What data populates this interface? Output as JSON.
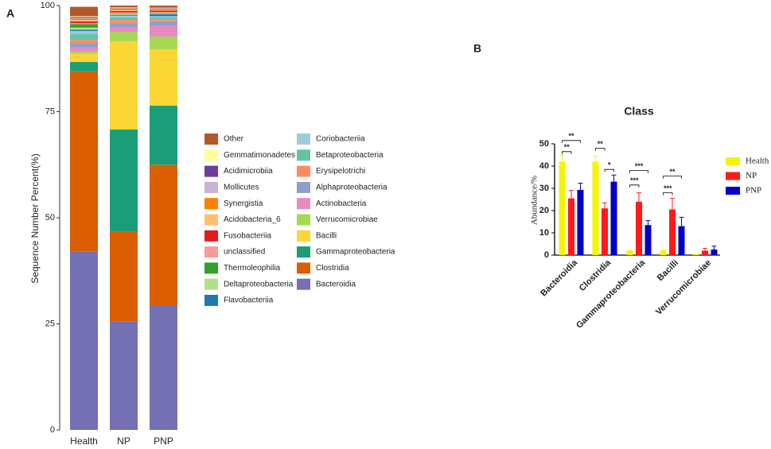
{
  "chart_data": [
    {
      "type": "stacked_bar",
      "panel": "A",
      "ylabel": "Sequence Number Percent(%)",
      "categories": [
        "Health",
        "NP",
        "PNP"
      ],
      "ylim": [
        0,
        100
      ],
      "yticks": [
        0,
        25,
        50,
        75,
        100
      ],
      "series": [
        {
          "name": "Bacteroidia",
          "color": "#7570b3",
          "values": [
            42.1,
            25.5,
            29.4
          ]
        },
        {
          "name": "Clostridia",
          "color": "#d95f02",
          "values": [
            42.4,
            21.3,
            33.1
          ]
        },
        {
          "name": "Gammaproteobacteria",
          "color": "#1b9e77",
          "values": [
            2.2,
            24.0,
            13.9
          ]
        },
        {
          "name": "Bacilli",
          "color": "#fbd635",
          "values": [
            1.9,
            20.8,
            13.3
          ]
        },
        {
          "name": "Verrucomicrobiae",
          "color": "#a6d854",
          "values": [
            0.5,
            2.2,
            3.0
          ]
        },
        {
          "name": "Actinobacteria",
          "color": "#e78ac3",
          "values": [
            1.0,
            1.0,
            2.6
          ]
        },
        {
          "name": "Alphaproteobacteria",
          "color": "#8da0cb",
          "values": [
            1.0,
            1.0,
            1.0
          ]
        },
        {
          "name": "Erysipelotrichi",
          "color": "#fc8d62",
          "values": [
            0.8,
            0.8,
            0.5
          ]
        },
        {
          "name": "Betaproteobacteria",
          "color": "#66c2a5",
          "values": [
            1.5,
            0.6,
            0.4
          ]
        },
        {
          "name": "Coriobacteriia",
          "color": "#9ecae1",
          "values": [
            0.6,
            0.4,
            0.3
          ]
        },
        {
          "name": "Flavobacteriia",
          "color": "#1f78b4",
          "values": [
            0.3,
            0.2,
            0.5
          ]
        },
        {
          "name": "Deltaproteobacteria",
          "color": "#b2df8a",
          "values": [
            0.5,
            0.2,
            0.2
          ]
        },
        {
          "name": "Thermoleophilia",
          "color": "#33a02c",
          "values": [
            0.8,
            0.1,
            0.1
          ]
        },
        {
          "name": "unclassified",
          "color": "#fb9a99",
          "values": [
            0.3,
            0.3,
            0.2
          ]
        },
        {
          "name": "Fusobacteriia",
          "color": "#e31a1c",
          "values": [
            0.4,
            0.3,
            0.3
          ]
        },
        {
          "name": "Acidobacteria_6",
          "color": "#fdbf6f",
          "values": [
            0.3,
            0.2,
            0.1
          ]
        },
        {
          "name": "Synergistia",
          "color": "#ff7f00",
          "values": [
            0.3,
            0.4,
            0.3
          ]
        },
        {
          "name": "Mollicutes",
          "color": "#cab2d6",
          "values": [
            0.2,
            0.1,
            0.1
          ]
        },
        {
          "name": "Acidimicrobiia",
          "color": "#6a3d9a",
          "values": [
            0.2,
            0.1,
            0.1
          ]
        },
        {
          "name": "Gemmatimonadetes",
          "color": "#ffff99",
          "values": [
            0.2,
            0.1,
            0.1
          ]
        },
        {
          "name": "Other",
          "color": "#b15928",
          "values": [
            2.2,
            0.4,
            0.5
          ]
        }
      ]
    },
    {
      "type": "grouped_bar",
      "panel": "B",
      "title": "Class",
      "ylabel": "Abundance/%",
      "categories": [
        "Bacteroidia",
        "Clostridia",
        "Gammaproteobacteria",
        "Bacilli",
        "Verrucomicrobiae"
      ],
      "ylim": [
        0,
        50
      ],
      "yticks": [
        0,
        10,
        20,
        30,
        40,
        50
      ],
      "series": [
        {
          "name": "Health",
          "color": "#f5f500",
          "values": [
            42,
            42,
            2,
            2,
            0.3
          ],
          "errors": [
            3,
            2.5,
            0,
            0,
            0
          ]
        },
        {
          "name": "NP",
          "color": "#ff1a1a",
          "values": [
            25.5,
            21,
            24,
            20.5,
            2
          ],
          "errors": [
            3.5,
            2.5,
            4,
            5,
            1
          ]
        },
        {
          "name": "PNP",
          "color": "#0000c8",
          "values": [
            29.3,
            33,
            13.5,
            13,
            2.5
          ],
          "errors": [
            3,
            3,
            2,
            4,
            1.5
          ]
        }
      ],
      "annotations": [
        "**",
        "**",
        "**",
        "*",
        "***",
        "***",
        "**",
        "***"
      ]
    }
  ]
}
